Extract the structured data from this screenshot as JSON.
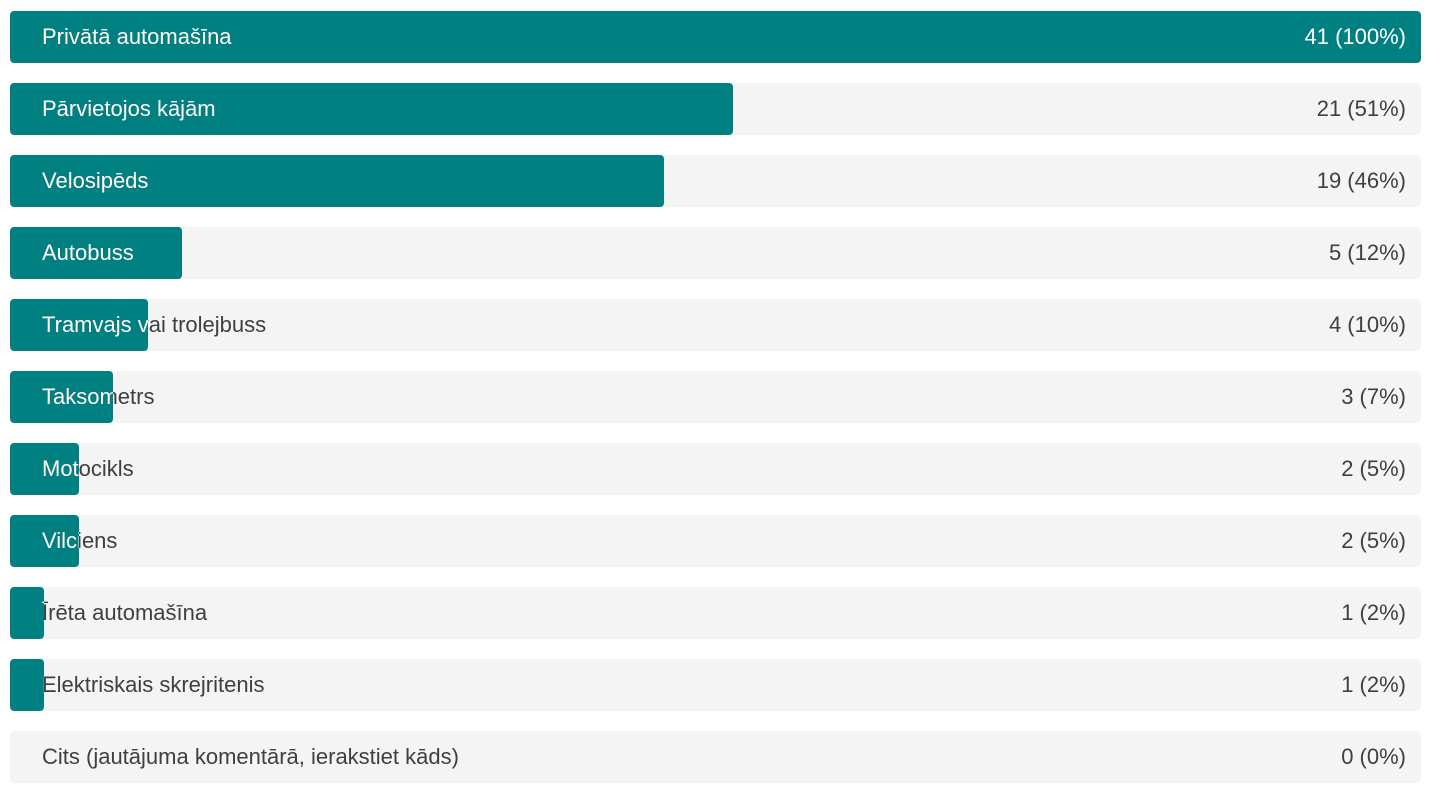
{
  "chart_data": {
    "type": "bar",
    "orientation": "horizontal",
    "max": 41,
    "categories": [
      "Privātā automašīna",
      "Pārvietojos kājām",
      "Velosipēds",
      "Autobuss",
      "Tramvajs vai trolejbuss",
      "Taksometrs",
      "Motocikls",
      "Vilciens",
      "Īrēta automašīna",
      "Elektriskais skrejritenis",
      "Cits (jautājuma komentārā, ierakstiet kāds)"
    ],
    "values": [
      41,
      21,
      19,
      5,
      4,
      3,
      2,
      2,
      1,
      1,
      0
    ],
    "value_labels": [
      "41 (100%)",
      "21 (51%)",
      "19 (46%)",
      "5 (12%)",
      "4 (10%)",
      "3 (7%)",
      "2 (5%)",
      "2 (5%)",
      "1 (2%)",
      "1 (2%)",
      "0 (0%)"
    ],
    "bar_color": "#008080",
    "track_color": "#f4f4f4",
    "grid": false
  }
}
